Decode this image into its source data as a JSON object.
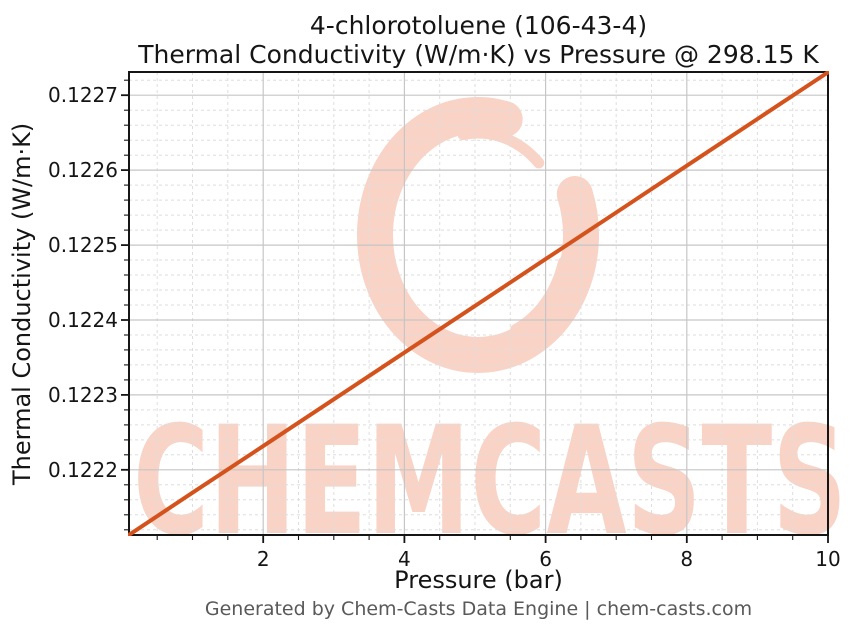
{
  "header": {
    "title_line1": "4-chlorotoluene (106-43-4)",
    "title_line2": "Thermal Conductivity (W/m·K) vs Pressure @ 298.15 K"
  },
  "footer": {
    "text": "Generated by Chem-Casts Data Engine | chem-casts.com"
  },
  "watermark": {
    "text": "CHEMCASTS",
    "logo": "chemcasts-brush-c-logo",
    "color": "#f8d3c6"
  },
  "colors": {
    "line": "#d4531d",
    "major_grid": "#c6c6c6",
    "minor_grid": "#dedede",
    "spine": "#151515",
    "tick": "#151515"
  },
  "chart_data": {
    "type": "line",
    "title": "4-chlorotoluene (106-43-4)\nThermal Conductivity (W/m·K) vs Pressure @ 298.15 K",
    "xlabel": "Pressure (bar)",
    "ylabel": "Thermal Conductivity (W/m·K)",
    "xlim": [
      0.1,
      10
    ],
    "ylim": [
      0.122113,
      0.122731
    ],
    "grid": {
      "major": true,
      "minor": true,
      "minor_style": "dashed"
    },
    "legend": "none",
    "x_ticks": {
      "values": [
        2,
        4,
        6,
        8,
        10
      ],
      "labels": [
        "2",
        "4",
        "6",
        "8",
        "10"
      ],
      "minor_step": 0.5
    },
    "y_ticks": {
      "values": [
        0.1222,
        0.1223,
        0.1224,
        0.1225,
        0.1226,
        0.1227
      ],
      "labels": [
        "0.1222",
        "0.1223",
        "0.1224",
        "0.1225",
        "0.1226",
        "0.1227"
      ],
      "minor_step": 2e-05
    },
    "series": [
      {
        "name": "Thermal conductivity vs pressure @ 298.15 K",
        "color": "#d4531d",
        "x": [
          0.1,
          1,
          2,
          3,
          4,
          5,
          6,
          7,
          8,
          9,
          10
        ],
        "y": [
          0.1221132,
          0.1221694,
          0.1222317,
          0.1222941,
          0.1223565,
          0.1224188,
          0.1224812,
          0.1225435,
          0.1226059,
          0.1226683,
          0.1227306
        ]
      }
    ]
  }
}
